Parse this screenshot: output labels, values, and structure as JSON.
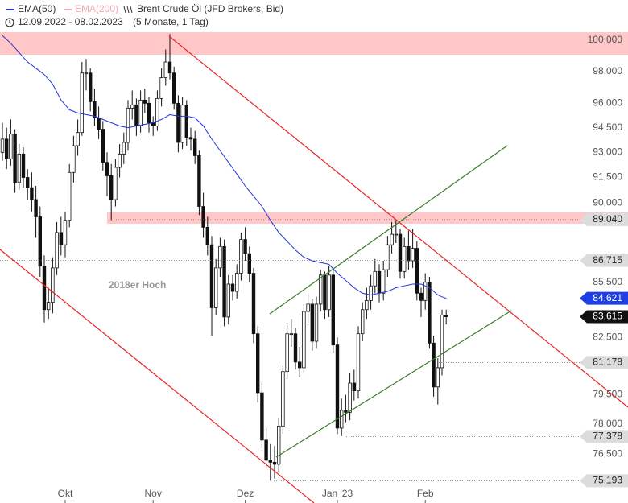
{
  "chart_data": {
    "type": "candlestick",
    "title": "Brent Crude Öl (JFD Brokers, Bid)",
    "date_range": "12.09.2022 - 08.02.2023",
    "period": "(5 Monate, 1 Tag)",
    "annotation": "2018er Hoch",
    "scale": "log",
    "ylim": [
      74.12,
      100.52
    ],
    "yticks": [
      {
        "value": 100,
        "label": "100,000"
      },
      {
        "value": 98,
        "label": "98,000"
      },
      {
        "value": 96,
        "label": "96,000"
      },
      {
        "value": 94.5,
        "label": "94,500"
      },
      {
        "value": 93,
        "label": "93,000"
      },
      {
        "value": 91.5,
        "label": "91,500"
      },
      {
        "value": 90,
        "label": "90,000"
      },
      {
        "value": 85.5,
        "label": "85,500"
      },
      {
        "value": 82.5,
        "label": "82,500"
      },
      {
        "value": 79.5,
        "label": "79,500"
      },
      {
        "value": 78,
        "label": "78,000"
      },
      {
        "value": 76.5,
        "label": "76,500"
      }
    ],
    "levels": [
      {
        "value": 89.04,
        "label": "89,040",
        "color": "#dcdcdc",
        "text_color": "#222222"
      },
      {
        "value": 86.715,
        "label": "86,715",
        "color": "#dcdcdc",
        "text_color": "#222222"
      },
      {
        "value": 84.621,
        "label": "84,621",
        "color": "#1f3fe6",
        "text_color": "#ffffff"
      },
      {
        "value": 83.615,
        "label": "83,615",
        "color": "#111111",
        "text_color": "#ffffff"
      },
      {
        "value": 81.178,
        "label": "81,178",
        "color": "#dcdcdc",
        "text_color": "#222222"
      },
      {
        "value": 77.378,
        "label": "77,378",
        "color": "#dcdcdc",
        "text_color": "#222222"
      },
      {
        "value": 75.193,
        "label": "75,193",
        "color": "#dcdcdc",
        "text_color": "#222222"
      }
    ],
    "categories": [
      null,
      null,
      null,
      null,
      null,
      null,
      null,
      null,
      null,
      null,
      null,
      null,
      null,
      null,
      null,
      "Okt",
      null,
      null,
      null,
      null,
      null,
      null,
      null,
      null,
      null,
      null,
      null,
      null,
      null,
      null,
      null,
      null,
      null,
      null,
      null,
      null,
      "Nov",
      null,
      null,
      null,
      null,
      null,
      null,
      null,
      null,
      null,
      null,
      null,
      null,
      null,
      null,
      null,
      null,
      null,
      null,
      null,
      null,
      null,
      "Dez",
      null,
      null,
      null,
      null,
      null,
      null,
      null,
      null,
      null,
      null,
      null,
      null,
      null,
      null,
      null,
      null,
      null,
      null,
      null,
      null,
      null,
      "Jan '23",
      null,
      null,
      null,
      null,
      null,
      null,
      null,
      null,
      null,
      null,
      null,
      null,
      null,
      null,
      null,
      null,
      null,
      null,
      null,
      null,
      "Feb",
      null,
      null,
      null,
      null,
      null
    ],
    "candles": {
      "open": [
        93.0,
        93.8,
        92.6,
        94.1,
        91.2,
        92.9,
        91.5,
        90.9,
        90.2,
        89.2,
        86.4,
        84.0,
        84.4,
        86.3,
        88.3,
        87.6,
        89.0,
        91.8,
        93.4,
        94.2,
        97.9,
        97.9,
        96.1,
        95.1,
        94.4,
        92.4,
        91.6,
        90.2,
        92.1,
        92.9,
        93.6,
        95.7,
        95.9,
        94.6,
        96.2,
        96.0,
        94.8,
        94.6,
        96.3,
        97.6,
        98.6,
        97.9,
        96.0,
        93.6,
        95.9,
        93.9,
        93.8,
        92.8,
        89.8,
        88.6,
        87.6,
        84.1,
        86.3,
        87.5,
        83.6,
        85.4,
        85.0,
        86.0,
        87.9,
        87.1,
        86.0,
        82.7,
        79.6,
        77.2,
        76.2,
        76.1,
        76.0,
        77.9,
        80.7,
        82.7,
        82.7,
        81.2,
        80.9,
        83.9,
        84.3,
        82.3,
        84.3,
        85.9,
        84.0,
        85.9,
        82.1,
        77.8,
        78.7,
        78.6,
        80.1,
        79.7,
        82.7,
        84.0,
        84.5,
        85.3,
        86.1,
        84.9,
        86.2,
        87.6,
        88.2,
        88.2,
        86.1,
        87.5,
        86.7,
        87.4,
        84.9,
        84.5,
        85.5,
        82.2,
        79.9,
        80.9,
        83.7
      ],
      "high": [
        94.8,
        94.5,
        95.0,
        94.4,
        93.5,
        93.3,
        92.0,
        91.8,
        91.0,
        89.8,
        87.0,
        85.2,
        86.9,
        88.9,
        89.2,
        89.5,
        92.3,
        94.0,
        95.0,
        98.6,
        98.8,
        98.2,
        96.9,
        95.8,
        94.9,
        93.0,
        92.3,
        92.6,
        93.5,
        94.2,
        96.2,
        96.8,
        96.3,
        96.8,
        96.9,
        96.4,
        95.2,
        96.8,
        98.2,
        99.4,
        100.4,
        98.3,
        96.5,
        96.4,
        96.2,
        94.5,
        94.3,
        93.1,
        90.6,
        89.2,
        88.1,
        86.8,
        88.0,
        87.9,
        85.9,
        85.9,
        86.5,
        88.3,
        88.6,
        87.5,
        86.3,
        83.1,
        80.2,
        77.9,
        77.0,
        76.9,
        78.3,
        81.0,
        83.3,
        83.5,
        83.0,
        82.0,
        84.3,
        84.9,
        84.6,
        84.7,
        86.2,
        86.1,
        86.4,
        86.3,
        82.5,
        79.3,
        79.5,
        80.6,
        80.8,
        83.1,
        84.4,
        85.2,
        85.9,
        86.8,
        86.5,
        86.7,
        88.1,
        88.9,
        89.0,
        88.5,
        88.0,
        88.4,
        88.5,
        87.8,
        85.2,
        86.0,
        85.8,
        82.6,
        81.4,
        84.0,
        84.0
      ],
      "low": [
        92.5,
        92.0,
        92.2,
        90.6,
        90.8,
        90.9,
        90.2,
        89.5,
        88.0,
        85.8,
        83.3,
        83.5,
        83.8,
        85.9,
        87.0,
        86.9,
        88.6,
        91.2,
        92.8,
        94.0,
        96.8,
        95.5,
        94.6,
        93.8,
        91.9,
        90.4,
        89.0,
        89.8,
        91.5,
        92.3,
        93.1,
        95.0,
        94.0,
        94.2,
        95.4,
        94.2,
        94.0,
        94.3,
        95.8,
        97.1,
        97.5,
        95.6,
        93.0,
        93.2,
        93.4,
        93.1,
        92.3,
        89.3,
        88.0,
        87.0,
        82.6,
        83.7,
        85.8,
        83.1,
        83.2,
        84.5,
        84.6,
        85.6,
        86.7,
        85.5,
        82.2,
        79.1,
        76.8,
        75.8,
        75.2,
        75.3,
        75.6,
        77.5,
        80.3,
        82.0,
        80.8,
        80.4,
        80.6,
        83.3,
        81.8,
        81.9,
        83.9,
        83.5,
        83.6,
        81.7,
        77.5,
        77.4,
        78.1,
        78.2,
        79.2,
        79.3,
        82.3,
        83.5,
        84.0,
        84.9,
        84.4,
        84.5,
        85.8,
        87.1,
        87.7,
        85.7,
        85.7,
        86.2,
        86.3,
        84.5,
        83.6,
        84.0,
        81.9,
        79.4,
        79.0,
        80.5,
        83.2
      ],
      "close": [
        93.8,
        92.6,
        94.1,
        91.2,
        92.9,
        91.5,
        90.9,
        90.2,
        89.2,
        86.4,
        84.0,
        84.4,
        86.3,
        88.3,
        87.6,
        89.0,
        91.8,
        93.4,
        94.2,
        97.9,
        97.9,
        96.1,
        95.1,
        94.4,
        92.4,
        91.6,
        90.2,
        92.1,
        92.9,
        93.6,
        95.7,
        95.9,
        94.6,
        96.2,
        96.0,
        94.8,
        94.6,
        96.3,
        97.6,
        98.6,
        97.9,
        96.0,
        93.6,
        95.9,
        93.9,
        93.8,
        92.8,
        89.8,
        88.6,
        87.6,
        84.1,
        86.3,
        87.5,
        83.6,
        85.4,
        85.0,
        86.0,
        87.9,
        87.1,
        86.0,
        82.7,
        79.6,
        77.2,
        76.2,
        76.1,
        76.0,
        77.9,
        80.7,
        82.7,
        82.7,
        81.2,
        80.9,
        83.9,
        84.3,
        82.3,
        84.3,
        85.9,
        84.0,
        85.9,
        82.1,
        77.8,
        78.7,
        78.6,
        80.1,
        79.7,
        82.7,
        84.0,
        84.5,
        85.3,
        86.1,
        84.9,
        86.2,
        87.6,
        88.2,
        88.2,
        86.1,
        87.5,
        86.7,
        87.4,
        84.9,
        84.5,
        85.5,
        82.2,
        79.9,
        80.9,
        83.7,
        83.615
      ]
    },
    "series": [
      {
        "name": "EMA(50)",
        "color": "#2233dd",
        "values": [
          100.3,
          100.05,
          99.8,
          99.5,
          99.2,
          98.9,
          98.6,
          98.4,
          98.2,
          98.0,
          97.8,
          97.5,
          97.2,
          96.7,
          96.2,
          95.9,
          95.6,
          95.5,
          95.4,
          95.35,
          95.3,
          95.25,
          95.2,
          95.1,
          95.0,
          94.9,
          94.8,
          94.7,
          94.6,
          94.55,
          94.5,
          94.55,
          94.6,
          94.65,
          94.7,
          94.75,
          94.8,
          94.9,
          95.0,
          95.15,
          95.3,
          95.25,
          95.2,
          95.2,
          95.2,
          95.15,
          95.1,
          94.85,
          94.6,
          94.2,
          93.8,
          93.45,
          93.1,
          92.75,
          92.4,
          92.05,
          91.7,
          91.35,
          91.0,
          90.7,
          90.4,
          90.1,
          89.8,
          89.4,
          89.0,
          88.65,
          88.3,
          88.05,
          87.8,
          87.55,
          87.3,
          87.1,
          86.9,
          86.8,
          86.7,
          86.65,
          86.6,
          86.55,
          86.5,
          86.25,
          86.0,
          85.8,
          85.6,
          85.4,
          85.2,
          85.05,
          84.9,
          84.85,
          84.8,
          84.85,
          84.9,
          84.95,
          85.0,
          85.1,
          85.2,
          85.25,
          85.3,
          85.35,
          85.4,
          85.4,
          85.4,
          85.3,
          85.2,
          85.0,
          84.8,
          84.7,
          84.621
        ]
      },
      {
        "name": "EMA(200)",
        "color": "#f4a9b4"
      }
    ]
  }
}
